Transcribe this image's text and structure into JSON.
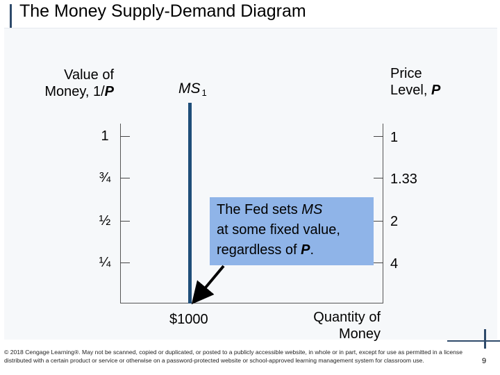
{
  "slide": {
    "title": "The Money Supply-Demand Diagram",
    "footer": "© 2018 Cengage Learning®. May not be scanned, copied or duplicated, or posted to a publicly accessible website, in whole or in part, except for use as permitted in a license distributed with a certain product or service or otherwise on a password-protected website or school-approved learning management system for classroom use.",
    "page_number": "9"
  },
  "diagram": {
    "left_axis_label_line1": "Value of",
    "left_axis_label_line2": "Money, 1/",
    "left_axis_label_var": "P",
    "right_axis_label_line1": "Price",
    "right_axis_label_line2": "Level, ",
    "right_axis_label_var": "P",
    "left_ticks": [
      "1",
      "¾",
      "½",
      "¼"
    ],
    "right_ticks": [
      "1",
      "1.33",
      "2",
      "4"
    ],
    "ms_label": "MS",
    "ms_subscript": "1",
    "x_value_label": "$1000",
    "x_axis_label_line1": "Quantity of",
    "x_axis_label_line2": "Money",
    "callout_part1": "The Fed sets ",
    "callout_ms": "MS",
    "callout_part2": "at some fixed value,",
    "callout_part3": "regardless of ",
    "callout_var": "P",
    "callout_end": ".",
    "colors": {
      "ms_line": "#1f4e79",
      "callout_fill": "#8fb4e8",
      "decoration": "#2e4a6b"
    }
  }
}
